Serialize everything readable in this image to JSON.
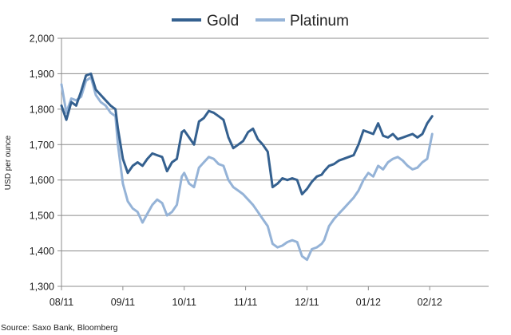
{
  "chart_data": {
    "type": "line",
    "title": "",
    "xlabel": "",
    "ylabel": "USD per ounce",
    "ylim": [
      1300,
      2000
    ],
    "yticks": [
      "1,300",
      "1,400",
      "1,500",
      "1,600",
      "1,700",
      "1,800",
      "1,900",
      "2,000"
    ],
    "ytick_values": [
      1300,
      1400,
      1500,
      1600,
      1700,
      1800,
      1900,
      2000
    ],
    "xlim": [
      0,
      174
    ],
    "xticks": [
      "08/11",
      "09/11",
      "10/11",
      "11/11",
      "12/11",
      "01/12",
      "02/12"
    ],
    "xtick_values": [
      0,
      25,
      50,
      75,
      100,
      125,
      150
    ],
    "grid": true,
    "legend_placement": "top-center",
    "source": "Source: Saxo Bank, Bloomberg",
    "series": [
      {
        "name": "Gold",
        "color": "#34608f",
        "x": [
          0,
          2,
          4,
          6,
          8,
          10,
          12,
          14,
          16,
          18,
          20,
          22,
          23,
          25,
          27,
          29,
          31,
          33,
          35,
          37,
          39,
          41,
          43,
          45,
          47,
          49,
          50,
          52,
          54,
          56,
          58,
          60,
          62,
          64,
          66,
          68,
          70,
          72,
          74,
          76,
          78,
          80,
          82,
          84,
          86,
          88,
          90,
          92,
          94,
          96,
          98,
          100,
          102,
          104,
          106,
          107,
          109,
          111,
          113,
          115,
          117,
          119,
          121,
          123,
          125,
          127,
          129,
          131,
          133,
          135,
          137,
          139,
          141,
          143,
          145,
          147,
          149,
          151
        ],
        "values": [
          1810,
          1770,
          1820,
          1810,
          1850,
          1895,
          1900,
          1855,
          1840,
          1825,
          1810,
          1800,
          1745,
          1660,
          1620,
          1640,
          1650,
          1640,
          1660,
          1675,
          1670,
          1665,
          1625,
          1650,
          1660,
          1735,
          1740,
          1720,
          1700,
          1765,
          1775,
          1795,
          1790,
          1780,
          1770,
          1720,
          1690,
          1700,
          1710,
          1735,
          1745,
          1715,
          1700,
          1680,
          1580,
          1590,
          1605,
          1600,
          1605,
          1600,
          1560,
          1575,
          1595,
          1610,
          1615,
          1625,
          1640,
          1645,
          1655,
          1660,
          1665,
          1670,
          1700,
          1740,
          1735,
          1730,
          1760,
          1725,
          1720,
          1730,
          1715,
          1720,
          1725,
          1730,
          1720,
          1730,
          1760,
          1780
        ]
      },
      {
        "name": "Platinum",
        "color": "#95b3d7",
        "x": [
          0,
          2,
          4,
          6,
          8,
          10,
          12,
          14,
          16,
          18,
          20,
          22,
          23,
          25,
          27,
          29,
          31,
          33,
          35,
          37,
          39,
          41,
          43,
          45,
          47,
          49,
          50,
          52,
          54,
          56,
          58,
          60,
          62,
          64,
          66,
          68,
          70,
          72,
          74,
          76,
          78,
          80,
          82,
          84,
          86,
          88,
          90,
          92,
          94,
          96,
          98,
          100,
          102,
          104,
          106,
          107,
          109,
          111,
          113,
          115,
          117,
          119,
          121,
          123,
          125,
          127,
          129,
          131,
          133,
          135,
          137,
          139,
          141,
          143,
          145,
          147,
          149,
          151
        ],
        "values": [
          1870,
          1790,
          1830,
          1825,
          1835,
          1880,
          1890,
          1840,
          1820,
          1810,
          1790,
          1780,
          1700,
          1590,
          1540,
          1520,
          1510,
          1480,
          1505,
          1530,
          1545,
          1535,
          1500,
          1510,
          1530,
          1610,
          1620,
          1590,
          1580,
          1635,
          1650,
          1665,
          1660,
          1645,
          1640,
          1600,
          1580,
          1570,
          1560,
          1545,
          1530,
          1510,
          1490,
          1470,
          1420,
          1410,
          1415,
          1425,
          1430,
          1425,
          1385,
          1375,
          1405,
          1410,
          1420,
          1430,
          1470,
          1490,
          1505,
          1520,
          1535,
          1550,
          1570,
          1600,
          1620,
          1610,
          1640,
          1630,
          1650,
          1660,
          1665,
          1655,
          1640,
          1630,
          1635,
          1650,
          1660,
          1730
        ]
      }
    ]
  }
}
